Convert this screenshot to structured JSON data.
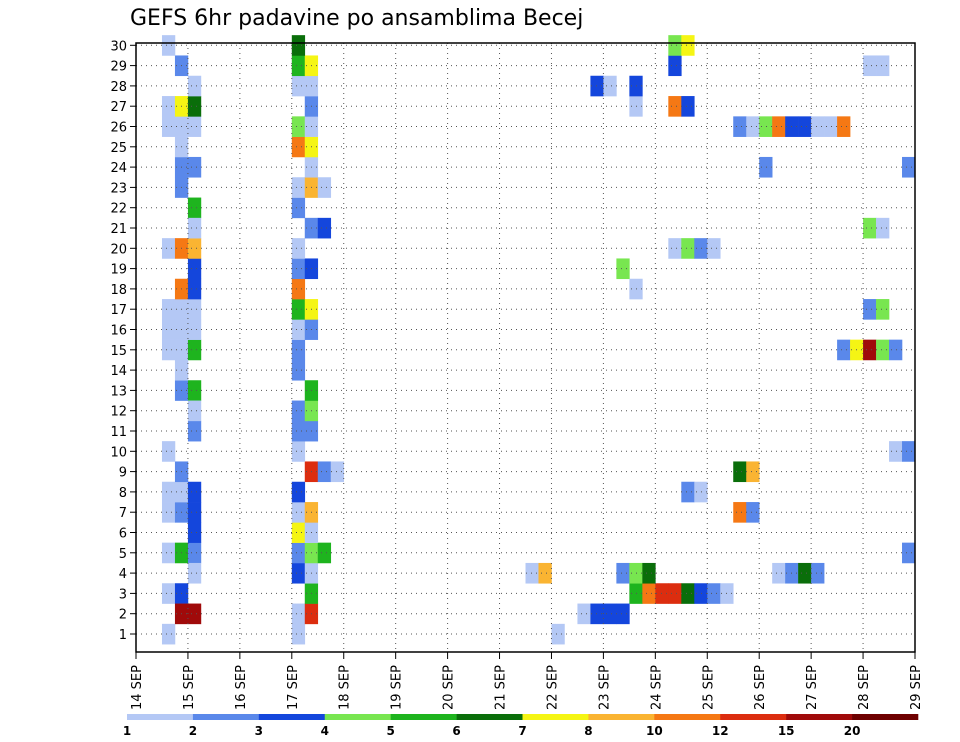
{
  "chart_data": {
    "type": "heatmap",
    "title": "GEFS 6hr padavine po ansamblima Becej",
    "xlabel": "",
    "ylabel": "",
    "x_ticks": [
      "14 SEP",
      "15 SEP",
      "16 SEP",
      "17 SEP",
      "18 SEP",
      "19 SEP",
      "20 SEP",
      "21 SEP",
      "22 SEP",
      "23 SEP",
      "24 SEP",
      "25 SEP",
      "26 SEP",
      "27 SEP",
      "28 SEP",
      "29 SEP"
    ],
    "y_ticks": [
      "1",
      "2",
      "3",
      "4",
      "5",
      "6",
      "7",
      "8",
      "9",
      "10",
      "11",
      "12",
      "13",
      "14",
      "15",
      "16",
      "17",
      "18",
      "19",
      "20",
      "21",
      "22",
      "23",
      "24",
      "25",
      "26",
      "27",
      "28",
      "29",
      "30"
    ],
    "x_unit": "6-hour step from 14 SEP",
    "y_unit": "ensemble member",
    "colorbar": {
      "labels": [
        "1",
        "2",
        "3",
        "4",
        "5",
        "6",
        "7",
        "8",
        "10",
        "12",
        "15",
        "20"
      ],
      "colors": [
        "#b4c8f5",
        "#5a88ea",
        "#1446dc",
        "#78e650",
        "#1eb41e",
        "#0a6e0a",
        "#f5f514",
        "#fab432",
        "#f57814",
        "#dc2d0f",
        "#a00a0a",
        "#6e0000"
      ]
    },
    "grid": true,
    "cells": [
      [
        1,
        2,
        1
      ],
      [
        3,
        2,
        1
      ],
      [
        3,
        3,
        3
      ],
      [
        5,
        2,
        1
      ],
      [
        5,
        3,
        5
      ],
      [
        5,
        4,
        2
      ],
      [
        7,
        2,
        1
      ],
      [
        7,
        3,
        2
      ],
      [
        7,
        4,
        3
      ],
      [
        8,
        2,
        1
      ],
      [
        8,
        3,
        1
      ],
      [
        8,
        4,
        3
      ],
      [
        9,
        3,
        2
      ],
      [
        10,
        2,
        1
      ],
      [
        13,
        3,
        2
      ],
      [
        13,
        4,
        5
      ],
      [
        15,
        2,
        1
      ],
      [
        15,
        3,
        1
      ],
      [
        15,
        4,
        5
      ],
      [
        16,
        2,
        1
      ],
      [
        16,
        3,
        1
      ],
      [
        16,
        4,
        1
      ],
      [
        17,
        2,
        1
      ],
      [
        17,
        3,
        1
      ],
      [
        17,
        4,
        1
      ],
      [
        18,
        3,
        9
      ],
      [
        18,
        4,
        3
      ],
      [
        19,
        4,
        3
      ],
      [
        20,
        2,
        1
      ],
      [
        20,
        3,
        9
      ],
      [
        20,
        4,
        8
      ],
      [
        22,
        4,
        5
      ],
      [
        23,
        3,
        2
      ],
      [
        24,
        3,
        2
      ],
      [
        24,
        4,
        2
      ],
      [
        25,
        3,
        1
      ],
      [
        26,
        2,
        1
      ],
      [
        26,
        3,
        1
      ],
      [
        26,
        4,
        1
      ],
      [
        27,
        2,
        1
      ],
      [
        27,
        3,
        7
      ],
      [
        27,
        4,
        6
      ],
      [
        28,
        4,
        1
      ],
      [
        29,
        3,
        2
      ],
      [
        30,
        2,
        1
      ],
      [
        4,
        4,
        1
      ],
      [
        6,
        4,
        3
      ],
      [
        11,
        4,
        2
      ],
      [
        12,
        4,
        1
      ],
      [
        14,
        3,
        1
      ],
      [
        21,
        4,
        1
      ],
      [
        2,
        3,
        11
      ],
      [
        2,
        4,
        11
      ],
      [
        1,
        12,
        1
      ],
      [
        2,
        12,
        1
      ],
      [
        2,
        13,
        10
      ],
      [
        3,
        13,
        5
      ],
      [
        4,
        12,
        3
      ],
      [
        4,
        13,
        1
      ],
      [
        5,
        12,
        2
      ],
      [
        5,
        13,
        4
      ],
      [
        5,
        14,
        5
      ],
      [
        6,
        12,
        7
      ],
      [
        6,
        13,
        1
      ],
      [
        7,
        12,
        1
      ],
      [
        7,
        13,
        8
      ],
      [
        8,
        12,
        3
      ],
      [
        9,
        13,
        10
      ],
      [
        9,
        14,
        2
      ],
      [
        9,
        15,
        1
      ],
      [
        10,
        12,
        1
      ],
      [
        11,
        12,
        2
      ],
      [
        11,
        13,
        2
      ],
      [
        12,
        12,
        2
      ],
      [
        12,
        13,
        4
      ],
      [
        13,
        13,
        5
      ],
      [
        14,
        12,
        2
      ],
      [
        15,
        12,
        2
      ],
      [
        16,
        12,
        1
      ],
      [
        16,
        13,
        2
      ],
      [
        17,
        12,
        5
      ],
      [
        17,
        13,
        7
      ],
      [
        18,
        12,
        9
      ],
      [
        19,
        12,
        2
      ],
      [
        19,
        13,
        3
      ],
      [
        20,
        12,
        1
      ],
      [
        21,
        13,
        2
      ],
      [
        21,
        14,
        3
      ],
      [
        22,
        12,
        2
      ],
      [
        23,
        12,
        1
      ],
      [
        23,
        13,
        8
      ],
      [
        23,
        14,
        1
      ],
      [
        24,
        13,
        1
      ],
      [
        25,
        12,
        9
      ],
      [
        25,
        13,
        7
      ],
      [
        26,
        12,
        4
      ],
      [
        26,
        13,
        1
      ],
      [
        27,
        13,
        2
      ],
      [
        28,
        12,
        1
      ],
      [
        28,
        13,
        1
      ],
      [
        29,
        12,
        5
      ],
      [
        29,
        13,
        7
      ],
      [
        30,
        12,
        6
      ],
      [
        1,
        32,
        1
      ],
      [
        2,
        34,
        1
      ],
      [
        2,
        35,
        3
      ],
      [
        2,
        36,
        3
      ],
      [
        2,
        37,
        3
      ],
      [
        3,
        38,
        5
      ],
      [
        3,
        39,
        9
      ],
      [
        3,
        40,
        10
      ],
      [
        3,
        41,
        10
      ],
      [
        3,
        42,
        6
      ],
      [
        3,
        43,
        3
      ],
      [
        3,
        44,
        2
      ],
      [
        3,
        45,
        1
      ],
      [
        4,
        30,
        1
      ],
      [
        4,
        31,
        8
      ],
      [
        4,
        37,
        2
      ],
      [
        4,
        38,
        4
      ],
      [
        4,
        39,
        6
      ],
      [
        4,
        49,
        1
      ],
      [
        4,
        50,
        2
      ],
      [
        4,
        51,
        6
      ],
      [
        4,
        52,
        2
      ],
      [
        7,
        46,
        9
      ],
      [
        7,
        47,
        2
      ],
      [
        8,
        42,
        2
      ],
      [
        8,
        43,
        1
      ],
      [
        9,
        46,
        6
      ],
      [
        9,
        47,
        8
      ],
      [
        19,
        37,
        4
      ],
      [
        18,
        38,
        1
      ],
      [
        20,
        41,
        1
      ],
      [
        20,
        42,
        4
      ],
      [
        20,
        43,
        2
      ],
      [
        20,
        44,
        1
      ],
      [
        26,
        46,
        2
      ],
      [
        26,
        47,
        1
      ],
      [
        26,
        48,
        4
      ],
      [
        26,
        49,
        9
      ],
      [
        26,
        50,
        3
      ],
      [
        26,
        51,
        3
      ],
      [
        26,
        52,
        1
      ],
      [
        26,
        53,
        1
      ],
      [
        26,
        54,
        9
      ],
      [
        24,
        48,
        2
      ],
      [
        27,
        38,
        1
      ],
      [
        27,
        41,
        9
      ],
      [
        27,
        42,
        3
      ],
      [
        28,
        35,
        3
      ],
      [
        28,
        36,
        1
      ],
      [
        28,
        38,
        3
      ],
      [
        29,
        41,
        3
      ],
      [
        30,
        41,
        4
      ],
      [
        30,
        42,
        7
      ],
      [
        29,
        56,
        1
      ],
      [
        29,
        57,
        1
      ],
      [
        24,
        59,
        2
      ],
      [
        21,
        56,
        4
      ],
      [
        21,
        57,
        1
      ],
      [
        17,
        56,
        2
      ],
      [
        17,
        57,
        4
      ],
      [
        15,
        54,
        2
      ],
      [
        15,
        55,
        7
      ],
      [
        15,
        56,
        11
      ],
      [
        15,
        57,
        4
      ],
      [
        15,
        58,
        2
      ],
      [
        10,
        58,
        1
      ],
      [
        10,
        59,
        2
      ],
      [
        5,
        59,
        2
      ]
    ]
  }
}
